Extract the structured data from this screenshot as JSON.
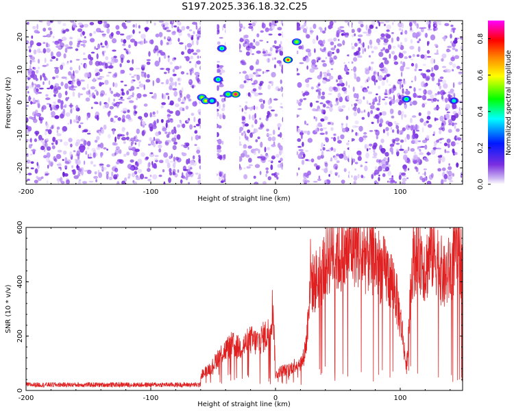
{
  "chart_data": [
    {
      "type": "heatmap",
      "title": "S197.2025.336.18.32.C25",
      "xlabel": "Height of straight line (km)",
      "ylabel": "Frequency (Hz)",
      "xlim": [
        -200,
        150
      ],
      "ylim": [
        -25,
        25
      ],
      "xticks": [
        -200,
        -100,
        0,
        100
      ],
      "yticks": [
        -20,
        -10,
        0,
        10,
        20
      ],
      "colorbar": {
        "label": "Normalized spectral amplitude",
        "range": [
          0.0,
          0.9
        ],
        "ticks": [
          0.0,
          0.2,
          0.4,
          0.6,
          0.8
        ],
        "colors": [
          "#ffffff",
          "#7a2ee0",
          "#0018ff",
          "#00ffff",
          "#00ff00",
          "#ffff00",
          "#ff8000",
          "#ff0000",
          "#ff00ff"
        ]
      },
      "blank_bands_km": [
        [
          -60,
          -47
        ],
        [
          -40,
          -29
        ],
        [
          6,
          17
        ],
        [
          59,
          61
        ]
      ],
      "peaks": [
        {
          "x": -59,
          "y": 1.5,
          "value": 0.55
        },
        {
          "x": -56,
          "y": 0.5,
          "value": 0.6
        },
        {
          "x": -51,
          "y": 0.5,
          "value": 0.4
        },
        {
          "x": -46,
          "y": 7,
          "value": 0.45
        },
        {
          "x": -43,
          "y": 16.5,
          "value": 0.45
        },
        {
          "x": -38,
          "y": 2.5,
          "value": 0.5
        },
        {
          "x": -32,
          "y": 2.5,
          "value": 0.85
        },
        {
          "x": 10,
          "y": 13,
          "value": 0.75
        },
        {
          "x": 17,
          "y": 18.5,
          "value": 0.55
        },
        {
          "x": 105,
          "y": 1,
          "value": 0.45
        },
        {
          "x": 143,
          "y": 0.5,
          "value": 0.4
        }
      ]
    },
    {
      "type": "line",
      "xlabel": "Height of straight line (km)",
      "ylabel": "SNR (10 * v/v)",
      "xlim": [
        -200,
        150
      ],
      "ylim": [
        0,
        600
      ],
      "xticks": [
        -200,
        -100,
        0,
        100
      ],
      "yticks": [
        0,
        200,
        400,
        600
      ],
      "color": "#e02020",
      "series": [
        {
          "name": "SNR",
          "x": [
            -200,
            -150,
            -100,
            -62,
            -60,
            -50,
            -45,
            -40,
            -35,
            -30,
            -25,
            -20,
            -15,
            -10,
            -5,
            -2,
            0,
            5,
            10,
            15,
            20,
            22,
            25,
            28,
            30,
            35,
            40,
            45,
            50,
            55,
            60,
            65,
            70,
            75,
            80,
            85,
            90,
            95,
            100,
            102,
            105,
            110,
            115,
            120,
            125,
            130,
            135,
            140,
            145,
            150
          ],
          "values": [
            20,
            20,
            22,
            20,
            60,
            100,
            140,
            160,
            180,
            170,
            180,
            200,
            190,
            210,
            230,
            340,
            60,
            80,
            80,
            100,
            110,
            120,
            200,
            470,
            420,
            450,
            500,
            560,
            540,
            520,
            570,
            580,
            540,
            540,
            520,
            480,
            460,
            420,
            280,
            220,
            80,
            520,
            560,
            480,
            560,
            520,
            440,
            480,
            560,
            500
          ]
        }
      ]
    }
  ]
}
